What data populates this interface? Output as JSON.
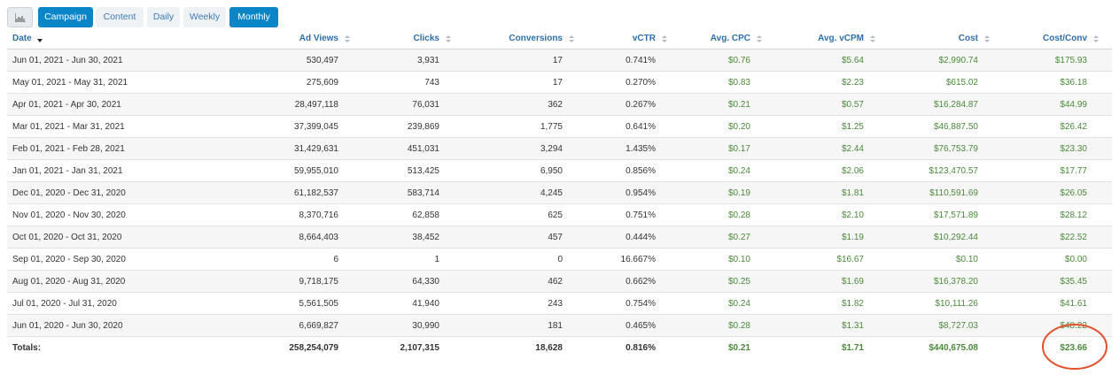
{
  "toolbar": {
    "buttons": [
      "Campaign",
      "Content",
      "Daily",
      "Weekly",
      "Monthly"
    ],
    "active": [
      "Campaign",
      "Monthly"
    ]
  },
  "table": {
    "columns": [
      "Date",
      "Ad Views",
      "Clicks",
      "Conversions",
      "vCTR",
      "Avg. CPC",
      "Avg. vCPM",
      "Cost",
      "Cost/Conv"
    ],
    "rows": [
      [
        "Jun 01, 2021 - Jun 30, 2021",
        "530,497",
        "3,931",
        "17",
        "0.741%",
        "$0.76",
        "$5.64",
        "$2,990.74",
        "$175.93"
      ],
      [
        "May 01, 2021 - May 31, 2021",
        "275,609",
        "743",
        "17",
        "0.270%",
        "$0.83",
        "$2.23",
        "$615.02",
        "$36.18"
      ],
      [
        "Apr 01, 2021 - Apr 30, 2021",
        "28,497,118",
        "76,031",
        "362",
        "0.267%",
        "$0.21",
        "$0.57",
        "$16,284.87",
        "$44.99"
      ],
      [
        "Mar 01, 2021 - Mar 31, 2021",
        "37,399,045",
        "239,869",
        "1,775",
        "0.641%",
        "$0.20",
        "$1.25",
        "$46,887.50",
        "$26.42"
      ],
      [
        "Feb 01, 2021 - Feb 28, 2021",
        "31,429,631",
        "451,031",
        "3,294",
        "1.435%",
        "$0.17",
        "$2.44",
        "$76,753.79",
        "$23.30"
      ],
      [
        "Jan 01, 2021 - Jan 31, 2021",
        "59,955,010",
        "513,425",
        "6,950",
        "0.856%",
        "$0.24",
        "$2.06",
        "$123,470.57",
        "$17.77"
      ],
      [
        "Dec 01, 2020 - Dec 31, 2020",
        "61,182,537",
        "583,714",
        "4,245",
        "0.954%",
        "$0.19",
        "$1.81",
        "$110,591.69",
        "$26.05"
      ],
      [
        "Nov 01, 2020 - Nov 30, 2020",
        "8,370,716",
        "62,858",
        "625",
        "0.751%",
        "$0.28",
        "$2.10",
        "$17,571.89",
        "$28.12"
      ],
      [
        "Oct 01, 2020 - Oct 31, 2020",
        "8,664,403",
        "38,452",
        "457",
        "0.444%",
        "$0.27",
        "$1.19",
        "$10,292.44",
        "$22.52"
      ],
      [
        "Sep 01, 2020 - Sep 30, 2020",
        "6",
        "1",
        "0",
        "16.667%",
        "$0.10",
        "$16.67",
        "$0.10",
        "$0.00"
      ],
      [
        "Aug 01, 2020 - Aug 31, 2020",
        "9,718,175",
        "64,330",
        "462",
        "0.662%",
        "$0.25",
        "$1.69",
        "$16,378.20",
        "$35.45"
      ],
      [
        "Jul 01, 2020 - Jul 31, 2020",
        "5,561,505",
        "41,940",
        "243",
        "0.754%",
        "$0.24",
        "$1.82",
        "$10,111.26",
        "$41.61"
      ],
      [
        "Jun 01, 2020 - Jun 30, 2020",
        "6,669,827",
        "30,990",
        "181",
        "0.465%",
        "$0.28",
        "$1.31",
        "$8,727.03",
        "$48.22"
      ]
    ],
    "totals": [
      "Totals:",
      "258,254,079",
      "2,107,315",
      "18,628",
      "0.816%",
      "$0.21",
      "$1.71",
      "$440,675.08",
      "$23.66"
    ]
  }
}
